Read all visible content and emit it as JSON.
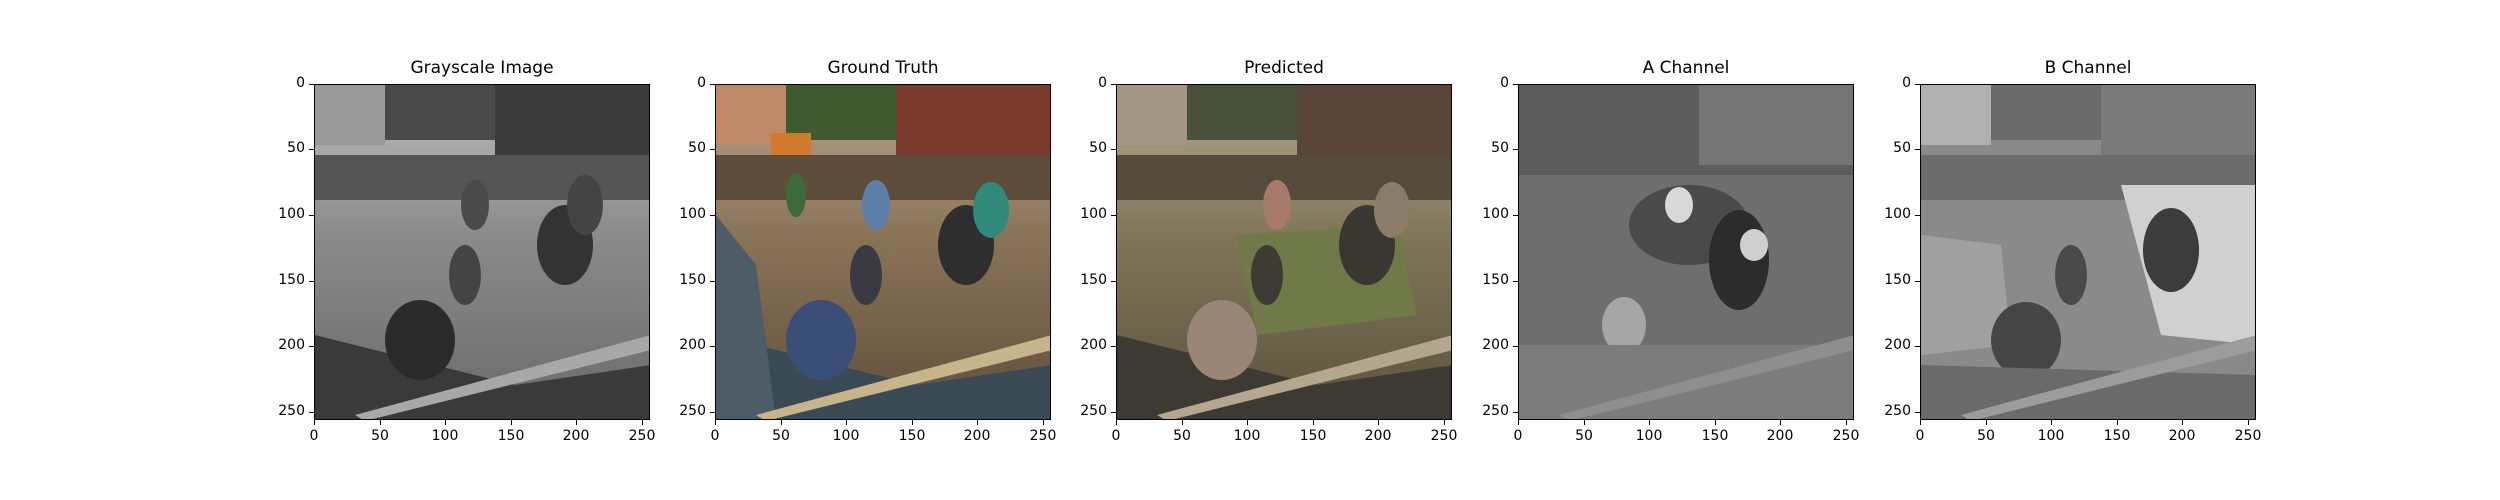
{
  "panels": [
    {
      "id": "grayscale",
      "title": "Grayscale Image"
    },
    {
      "id": "ground-truth",
      "title": "Ground Truth"
    },
    {
      "id": "predicted",
      "title": "Predicted"
    },
    {
      "id": "a-channel",
      "title": "A Channel"
    },
    {
      "id": "b-channel",
      "title": "B Channel"
    }
  ],
  "axes": {
    "x_ticks": [
      "0",
      "50",
      "100",
      "150",
      "200",
      "250"
    ],
    "y_ticks": [
      "0",
      "50",
      "100",
      "150",
      "200",
      "250"
    ],
    "extent": [
      0,
      256
    ]
  }
}
